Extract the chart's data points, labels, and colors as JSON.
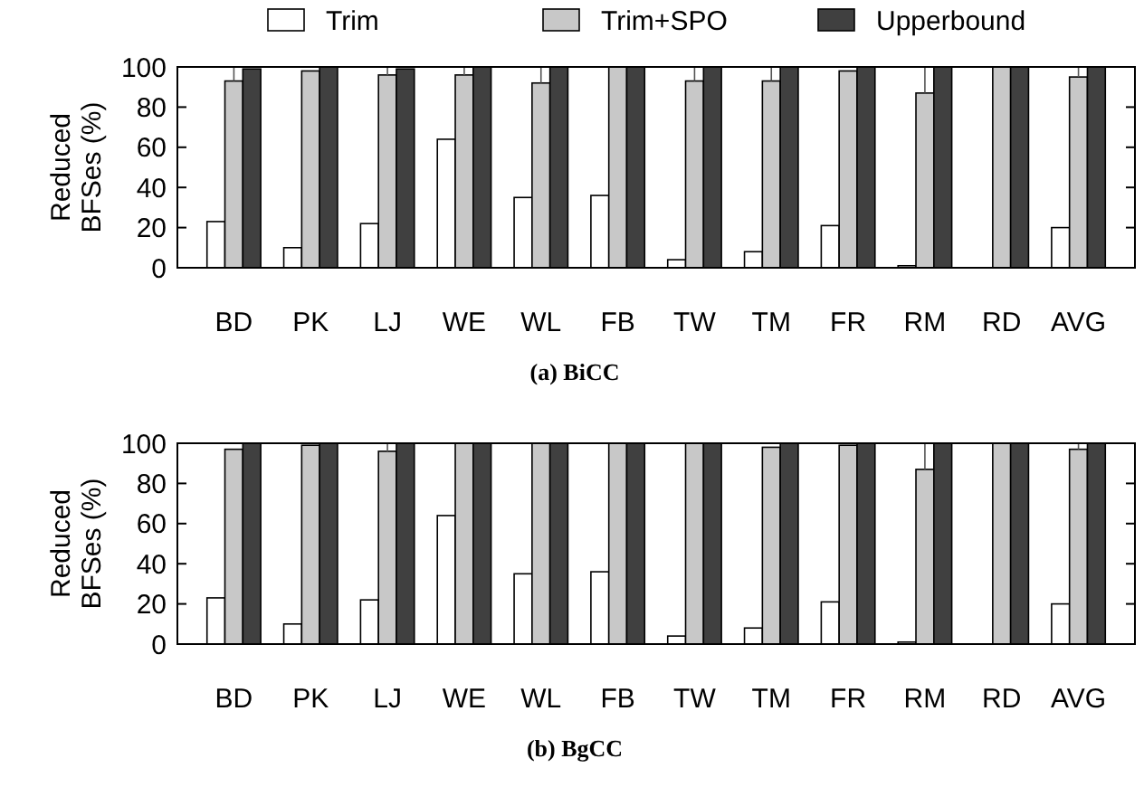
{
  "chart_data": [
    {
      "type": "bar",
      "title": "(a) BiCC",
      "ylabel": "Reduced\nBFSes (%)",
      "categories": [
        "BD",
        "PK",
        "LJ",
        "WE",
        "WL",
        "FB",
        "TW",
        "TM",
        "FR",
        "RM",
        "RD",
        "AVG"
      ],
      "ylim": [
        0,
        100
      ],
      "yticks": [
        0,
        20,
        40,
        60,
        80,
        100
      ],
      "legend": "top",
      "grid": false,
      "series": [
        {
          "name": "Trim",
          "color": "#ffffff",
          "values": [
            23,
            10,
            22,
            64,
            35,
            36,
            4,
            8,
            21,
            1,
            0,
            20
          ]
        },
        {
          "name": "Trim+SPO",
          "color": "#c8c8c8",
          "values": [
            93,
            98,
            96,
            96,
            92,
            100,
            93,
            93,
            98,
            87,
            100,
            95
          ],
          "errors": [
            [
              93,
              100
            ],
            null,
            [
              96,
              100
            ],
            [
              96,
              100
            ],
            [
              92,
              100
            ],
            null,
            [
              93,
              100
            ],
            [
              93,
              100
            ],
            null,
            [
              87,
              100
            ],
            null,
            [
              95,
              100
            ]
          ]
        },
        {
          "name": "Upperbound",
          "color": "#404040",
          "values": [
            99,
            100,
            99,
            100,
            100,
            100,
            100,
            100,
            100,
            100,
            100,
            100
          ]
        }
      ]
    },
    {
      "type": "bar",
      "title": "(b) BgCC",
      "ylabel": "Reduced\nBFSes (%)",
      "categories": [
        "BD",
        "PK",
        "LJ",
        "WE",
        "WL",
        "FB",
        "TW",
        "TM",
        "FR",
        "RM",
        "RD",
        "AVG"
      ],
      "ylim": [
        0,
        100
      ],
      "yticks": [
        0,
        20,
        40,
        60,
        80,
        100
      ],
      "legend": false,
      "grid": false,
      "series": [
        {
          "color": "#ffffff",
          "values": [
            23,
            10,
            22,
            64,
            35,
            36,
            4,
            8,
            21,
            1,
            0,
            20
          ]
        },
        {
          "color": "#c8c8c8",
          "values": [
            97,
            99,
            96,
            100,
            100,
            100,
            100,
            98,
            99,
            87,
            100,
            97
          ],
          "errors": [
            null,
            null,
            [
              96,
              100
            ],
            null,
            null,
            null,
            null,
            null,
            null,
            [
              87,
              100
            ],
            null,
            [
              97,
              100
            ]
          ]
        },
        {
          "color": "#404040",
          "values": [
            100,
            100,
            100,
            100,
            100,
            100,
            100,
            100,
            100,
            100,
            100,
            100
          ]
        }
      ]
    }
  ]
}
